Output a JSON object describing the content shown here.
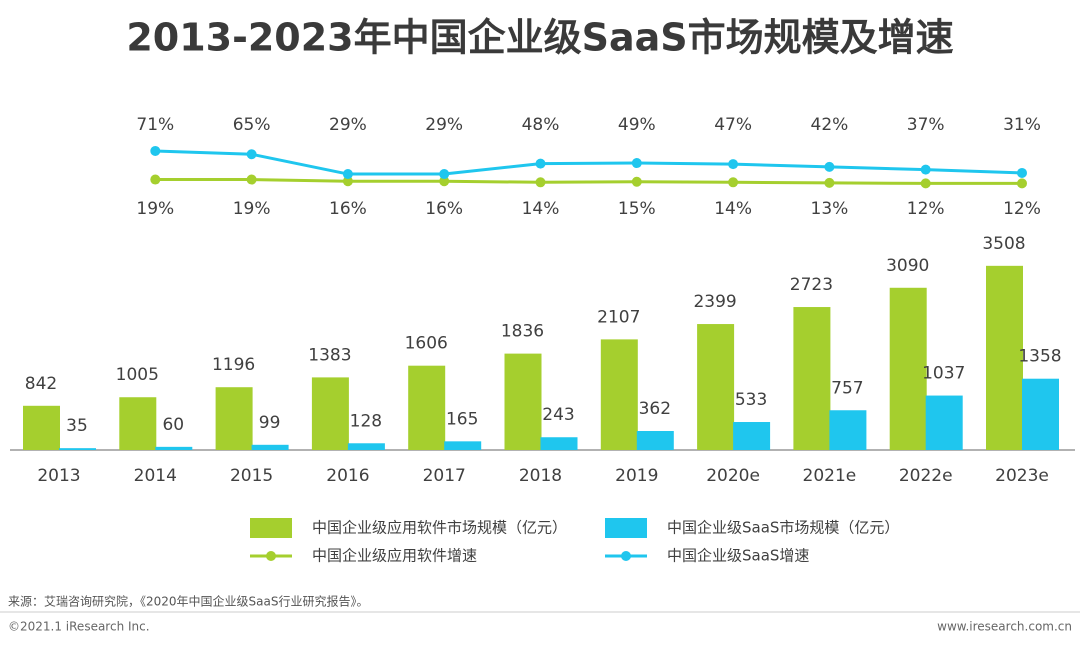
{
  "chart_data": {
    "type": "combo",
    "title": "2013-2023年中国企业级SaaS市场规模及增速",
    "categories": [
      "2013",
      "2014",
      "2015",
      "2016",
      "2017",
      "2018",
      "2019",
      "2020e",
      "2021e",
      "2022e",
      "2023e"
    ],
    "series": [
      {
        "name": "中国企业级应用软件市场规模（亿元）",
        "type": "bar",
        "color": "#a5cf2e",
        "values": [
          842,
          1005,
          1196,
          1383,
          1606,
          1836,
          2107,
          2399,
          2723,
          3090,
          3508
        ]
      },
      {
        "name": "中国企业级SaaS市场规模（亿元）",
        "type": "bar",
        "color": "#1fc6ee",
        "values": [
          35,
          60,
          99,
          128,
          165,
          243,
          362,
          533,
          757,
          1037,
          1358
        ]
      },
      {
        "name": "中国企业级应用软件增速",
        "type": "line",
        "color": "#a5cf2e",
        "values": [
          null,
          19,
          19,
          16,
          16,
          14,
          15,
          14,
          13,
          12,
          12
        ],
        "value_labels": [
          null,
          "19%",
          "19%",
          "16%",
          "16%",
          "14%",
          "15%",
          "14%",
          "13%",
          "12%",
          "12%"
        ]
      },
      {
        "name": "中国企业级SaaS增速",
        "type": "line",
        "color": "#1fc6ee",
        "values": [
          null,
          71,
          65,
          29,
          29,
          48,
          49,
          47,
          42,
          37,
          31
        ],
        "value_labels": [
          null,
          "71%",
          "65%",
          "29%",
          "29%",
          "48%",
          "49%",
          "47%",
          "42%",
          "37%",
          "31%"
        ]
      }
    ]
  },
  "source": "来源：艾瑞咨询研究院，《2020年中国企业级SaaS行业研究报告》。",
  "copyright": "©2021.1 iResearch Inc.",
  "website": "www.iresearch.com.cn"
}
